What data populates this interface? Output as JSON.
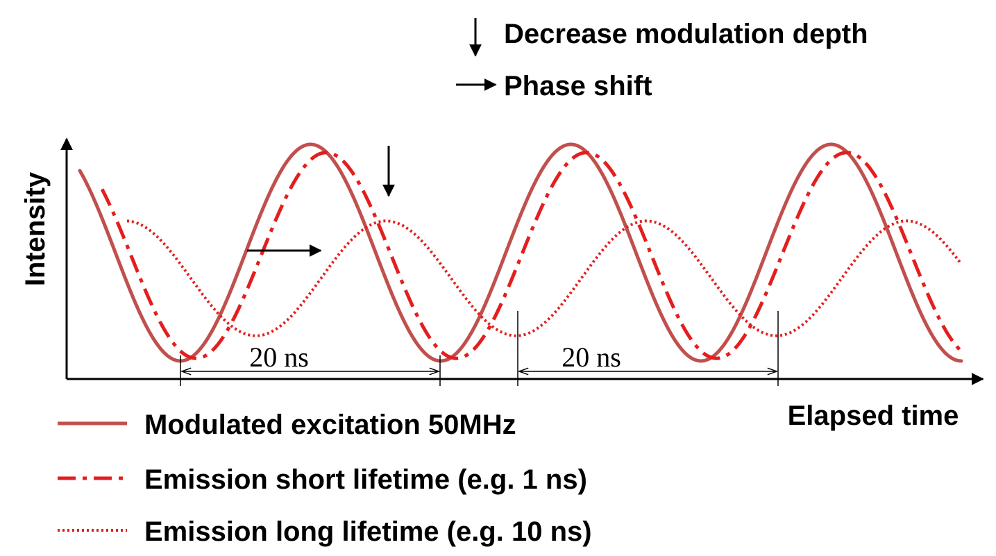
{
  "chart_data": {
    "type": "line",
    "title": "",
    "xlabel": "Elapsed time",
    "ylabel": "Intensity",
    "period_ns": 20,
    "period_label": "20 ns",
    "x_unit": "ns",
    "series": [
      {
        "name": "Modulated excitation 50MHz",
        "frequency_mhz": 50,
        "relative_modulation": 1.0,
        "phase_delay_ns": 0,
        "line_style": "solid",
        "color": "#c0504d"
      },
      {
        "name": "Emission short lifetime (e.g. 1 ns)",
        "lifetime_ns": 1,
        "relative_modulation": 0.95,
        "phase_delay_ns": 1.2,
        "line_style": "dash-dot",
        "color": "#e41e1e"
      },
      {
        "name": "Emission long lifetime (e.g. 10 ns)",
        "lifetime_ns": 10,
        "relative_modulation": 0.53,
        "phase_delay_ns": 5.8,
        "line_style": "dotted",
        "color": "#e41e1e"
      }
    ]
  },
  "annotations": {
    "decrease_label": "Decrease modulation depth",
    "phase_label": "Phase shift",
    "period_label_1": "20 ns",
    "period_label_2": "20 ns"
  },
  "legend": [
    {
      "label": "Modulated excitation 50MHz",
      "style": "solid",
      "color": "#c0504d"
    },
    {
      "label": "Emission short lifetime (e.g. 1 ns)",
      "style": "dash-dot",
      "color": "#e41e1e"
    },
    {
      "label": "Emission long lifetime (e.g. 10 ns)",
      "style": "dotted",
      "color": "#e41e1e"
    }
  ],
  "colors": {
    "axis": "#000000",
    "excitation": "#c0504d",
    "emission": "#e41e1e"
  }
}
